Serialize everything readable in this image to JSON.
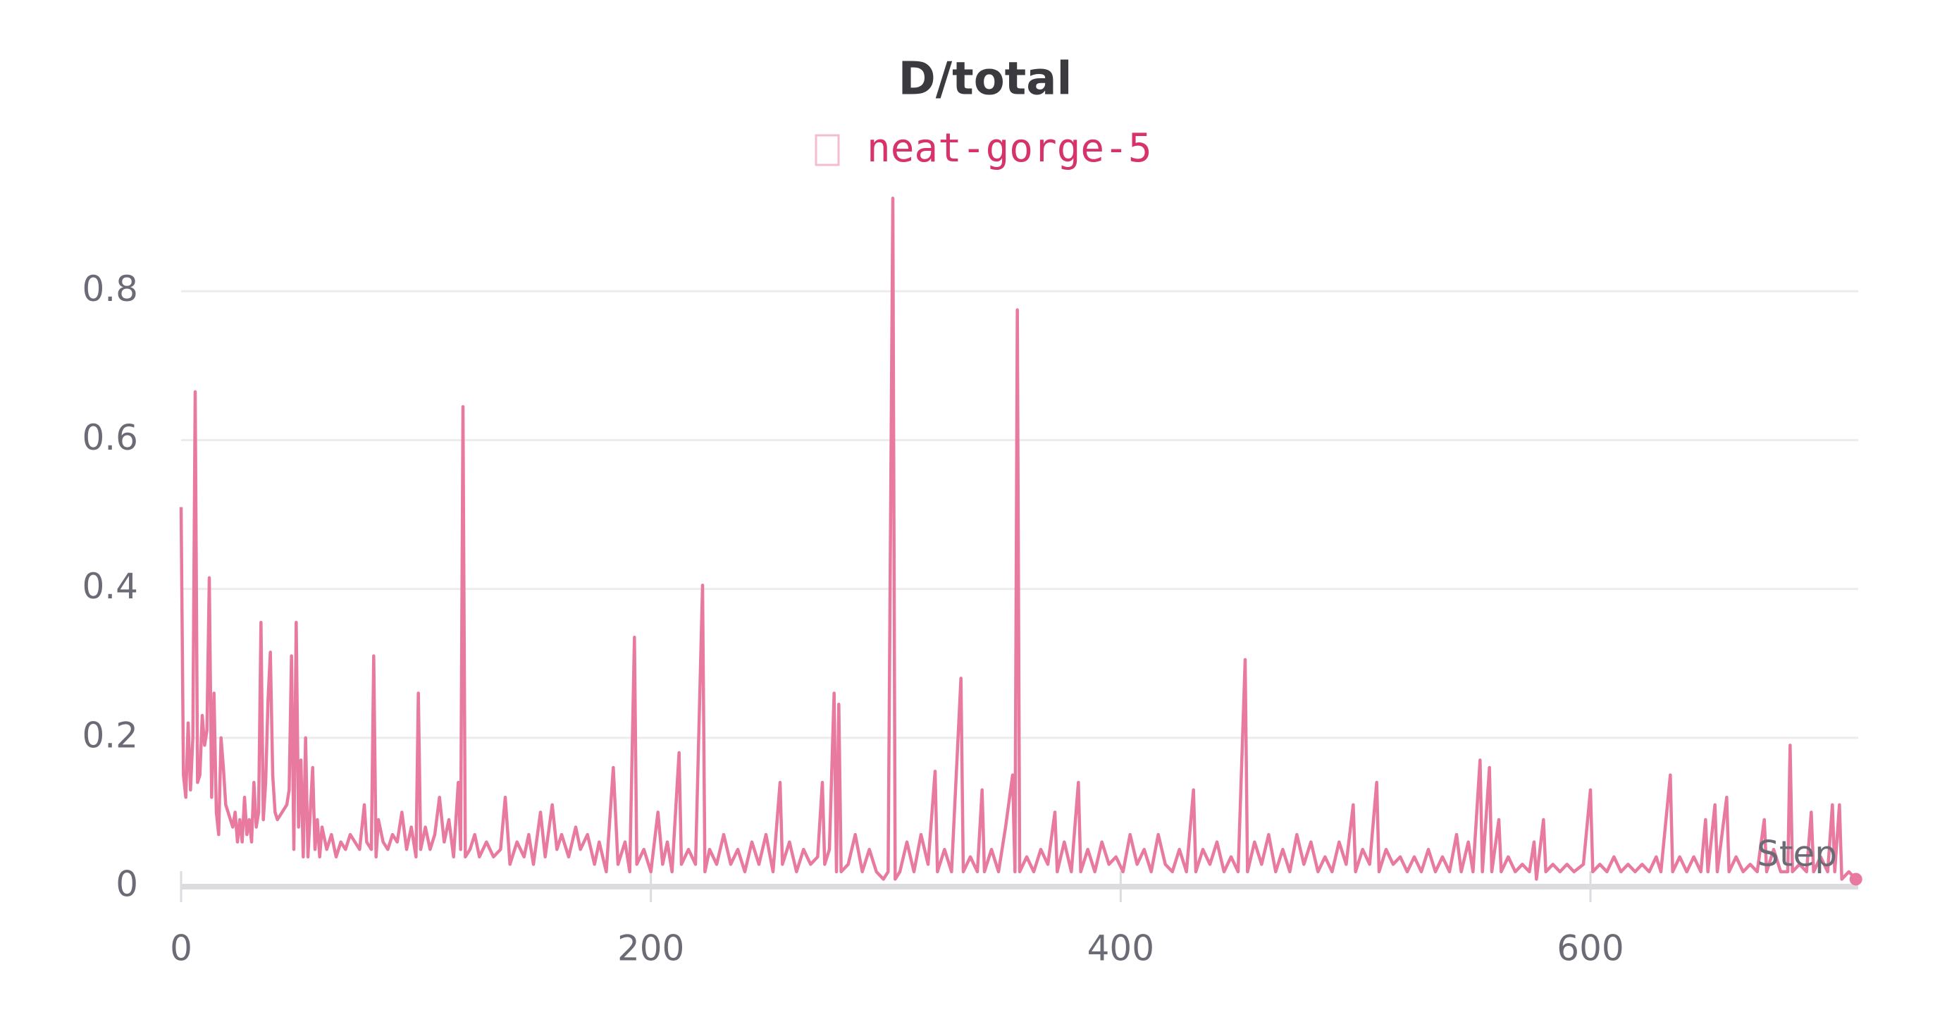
{
  "chart_data": {
    "type": "line",
    "title": "D/total",
    "x_label": "Step",
    "x": [
      0,
      1,
      2,
      3,
      4,
      5,
      6,
      7,
      8,
      9,
      10,
      11,
      12,
      13,
      14,
      15,
      16,
      17,
      18,
      19,
      20,
      22,
      23,
      24,
      25,
      26,
      27,
      28,
      29,
      30,
      31,
      32,
      33,
      34,
      35,
      36,
      37,
      38,
      39,
      40,
      41,
      43,
      45,
      46,
      47,
      48,
      49,
      50,
      51,
      52,
      53,
      54,
      56,
      57,
      58,
      59,
      60,
      62,
      64,
      66,
      68,
      70,
      72,
      74,
      76,
      78,
      79,
      81,
      82,
      83,
      84,
      86,
      88,
      90,
      92,
      94,
      96,
      98,
      100,
      101,
      102,
      104,
      106,
      108,
      110,
      112,
      114,
      116,
      118,
      119,
      120,
      121,
      123,
      125,
      127,
      130,
      133,
      136,
      138,
      140,
      143,
      146,
      148,
      150,
      153,
      155,
      158,
      160,
      162,
      165,
      168,
      170,
      173,
      176,
      178,
      181,
      184,
      186,
      189,
      191,
      193,
      194,
      197,
      200,
      203,
      205,
      207,
      209,
      212,
      213,
      216,
      219,
      222,
      223,
      225,
      228,
      231,
      234,
      237,
      240,
      243,
      246,
      249,
      252,
      255,
      256,
      259,
      262,
      265,
      268,
      271,
      273,
      274,
      276,
      278,
      279,
      280,
      281,
      284,
      287,
      290,
      293,
      296,
      299,
      301,
      303,
      304,
      306,
      309,
      312,
      315,
      318,
      321,
      322,
      325,
      328,
      332,
      333,
      336,
      339,
      341,
      342,
      345,
      348,
      351,
      354,
      355,
      356,
      357,
      360,
      363,
      366,
      369,
      372,
      373,
      376,
      379,
      382,
      383,
      386,
      389,
      392,
      395,
      398,
      401,
      404,
      407,
      410,
      413,
      416,
      419,
      422,
      425,
      428,
      431,
      432,
      435,
      438,
      441,
      444,
      447,
      450,
      453,
      454,
      457,
      460,
      463,
      466,
      469,
      472,
      475,
      478,
      481,
      484,
      487,
      490,
      493,
      496,
      499,
      500,
      503,
      506,
      509,
      510,
      513,
      516,
      519,
      522,
      525,
      528,
      531,
      534,
      537,
      540,
      543,
      545,
      548,
      550,
      553,
      554,
      557,
      558,
      561,
      562,
      565,
      568,
      571,
      574,
      576,
      577,
      580,
      581,
      584,
      587,
      590,
      593,
      597,
      600,
      601,
      604,
      607,
      610,
      613,
      616,
      619,
      622,
      625,
      628,
      630,
      634,
      635,
      638,
      641,
      644,
      647,
      649,
      650,
      653,
      654,
      658,
      659,
      662,
      665,
      668,
      671,
      674,
      675,
      678,
      681,
      684,
      685,
      686,
      689,
      692,
      694,
      695,
      698,
      701,
      703,
      704,
      706,
      707,
      710,
      713
    ],
    "series": [
      {
        "name": "neat-gorge-5",
        "color": "#e8799f",
        "values": [
          0.51,
          0.15,
          0.12,
          0.22,
          0.13,
          0.2,
          0.665,
          0.14,
          0.15,
          0.23,
          0.19,
          0.21,
          0.415,
          0.12,
          0.26,
          0.1,
          0.07,
          0.2,
          0.16,
          0.11,
          0.1,
          0.08,
          0.1,
          0.06,
          0.09,
          0.06,
          0.12,
          0.07,
          0.09,
          0.06,
          0.14,
          0.08,
          0.1,
          0.355,
          0.09,
          0.14,
          0.25,
          0.315,
          0.15,
          0.1,
          0.09,
          0.1,
          0.11,
          0.13,
          0.31,
          0.05,
          0.355,
          0.08,
          0.17,
          0.04,
          0.2,
          0.04,
          0.16,
          0.05,
          0.09,
          0.04,
          0.08,
          0.05,
          0.07,
          0.04,
          0.06,
          0.05,
          0.07,
          0.06,
          0.05,
          0.11,
          0.06,
          0.05,
          0.31,
          0.04,
          0.09,
          0.06,
          0.05,
          0.07,
          0.06,
          0.1,
          0.05,
          0.08,
          0.04,
          0.26,
          0.05,
          0.08,
          0.05,
          0.07,
          0.12,
          0.06,
          0.09,
          0.04,
          0.14,
          0.05,
          0.645,
          0.04,
          0.05,
          0.07,
          0.04,
          0.06,
          0.04,
          0.05,
          0.12,
          0.03,
          0.06,
          0.04,
          0.07,
          0.03,
          0.1,
          0.04,
          0.11,
          0.05,
          0.07,
          0.04,
          0.08,
          0.05,
          0.07,
          0.03,
          0.06,
          0.02,
          0.16,
          0.03,
          0.06,
          0.02,
          0.335,
          0.03,
          0.05,
          0.02,
          0.1,
          0.03,
          0.06,
          0.02,
          0.18,
          0.03,
          0.05,
          0.03,
          0.405,
          0.02,
          0.05,
          0.03,
          0.07,
          0.03,
          0.05,
          0.02,
          0.06,
          0.03,
          0.07,
          0.02,
          0.14,
          0.03,
          0.06,
          0.02,
          0.05,
          0.03,
          0.04,
          0.14,
          0.03,
          0.05,
          0.26,
          0.02,
          0.245,
          0.02,
          0.03,
          0.07,
          0.02,
          0.05,
          0.02,
          0.01,
          0.02,
          0.925,
          0.01,
          0.02,
          0.06,
          0.02,
          0.07,
          0.03,
          0.155,
          0.02,
          0.05,
          0.02,
          0.28,
          0.02,
          0.04,
          0.02,
          0.13,
          0.02,
          0.05,
          0.02,
          0.08,
          0.15,
          0.02,
          0.775,
          0.02,
          0.04,
          0.02,
          0.05,
          0.03,
          0.1,
          0.02,
          0.06,
          0.02,
          0.14,
          0.02,
          0.05,
          0.02,
          0.06,
          0.03,
          0.04,
          0.02,
          0.07,
          0.03,
          0.05,
          0.02,
          0.07,
          0.03,
          0.02,
          0.05,
          0.02,
          0.13,
          0.02,
          0.05,
          0.03,
          0.06,
          0.02,
          0.04,
          0.02,
          0.305,
          0.02,
          0.06,
          0.03,
          0.07,
          0.02,
          0.05,
          0.02,
          0.07,
          0.03,
          0.06,
          0.02,
          0.04,
          0.02,
          0.06,
          0.03,
          0.11,
          0.02,
          0.05,
          0.03,
          0.14,
          0.02,
          0.05,
          0.03,
          0.04,
          0.02,
          0.04,
          0.02,
          0.05,
          0.02,
          0.04,
          0.02,
          0.07,
          0.02,
          0.06,
          0.02,
          0.17,
          0.02,
          0.16,
          0.02,
          0.09,
          0.02,
          0.04,
          0.02,
          0.03,
          0.02,
          0.06,
          0.01,
          0.09,
          0.02,
          0.03,
          0.02,
          0.03,
          0.02,
          0.03,
          0.13,
          0.02,
          0.03,
          0.02,
          0.04,
          0.02,
          0.03,
          0.02,
          0.03,
          0.02,
          0.04,
          0.02,
          0.15,
          0.02,
          0.04,
          0.02,
          0.04,
          0.02,
          0.09,
          0.02,
          0.11,
          0.02,
          0.12,
          0.02,
          0.04,
          0.02,
          0.03,
          0.02,
          0.09,
          0.02,
          0.05,
          0.02,
          0.02,
          0.19,
          0.02,
          0.03,
          0.02,
          0.1,
          0.02,
          0.04,
          0.02,
          0.11,
          0.02,
          0.11,
          0.01,
          0.02,
          0.01
        ]
      }
    ],
    "xlim": [
      0,
      714
    ],
    "ylim": [
      0,
      0.93
    ],
    "xticks": [
      0,
      200,
      400,
      600
    ],
    "yticks": [
      0,
      0.2,
      0.4,
      0.6,
      0.8
    ],
    "grid": true
  }
}
